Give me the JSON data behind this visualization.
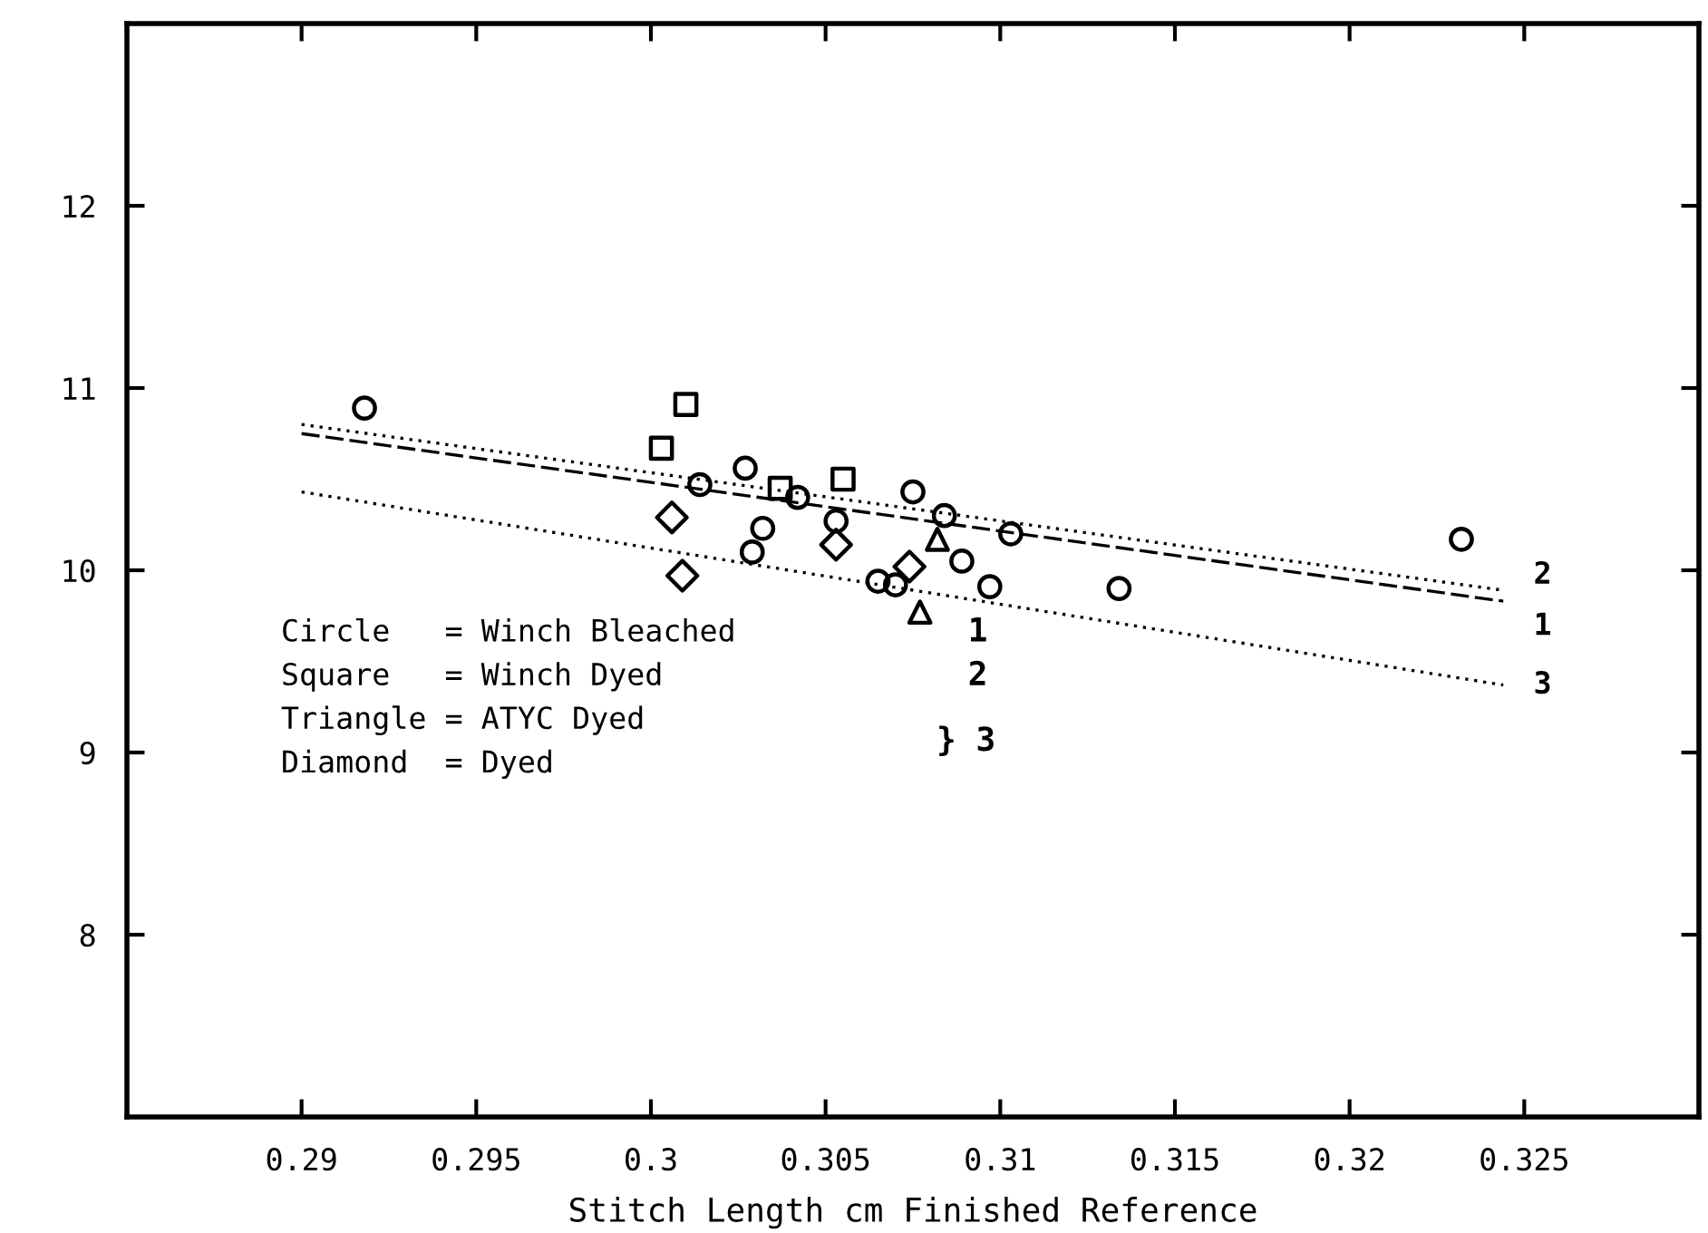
{
  "chart_data": {
    "type": "scatter",
    "xlabel": "Stitch Length cm Finished Reference",
    "xlim": [
      0.285,
      0.33
    ],
    "xticks": [
      0.29,
      0.295,
      0.3,
      0.305,
      0.31,
      0.315,
      0.32,
      0.325
    ],
    "ylim": [
      7,
      13
    ],
    "yticks": [
      8,
      9,
      10,
      11,
      12
    ],
    "grid": false,
    "legend": false,
    "series": [
      {
        "marker": "circle",
        "color": "#000000",
        "x": [
          0.2918,
          0.3014,
          0.3027,
          0.3032,
          0.3029,
          0.3042,
          0.3053,
          0.3065,
          0.307,
          0.3075,
          0.3084,
          0.3089,
          0.3103,
          0.3097,
          0.3134,
          0.3232
        ],
        "values": [
          10.89,
          10.47,
          10.56,
          10.23,
          10.1,
          10.4,
          10.27,
          9.94,
          9.92,
          10.43,
          10.3,
          10.05,
          10.2,
          9.91,
          9.9,
          10.17
        ]
      },
      {
        "marker": "square",
        "color": "#000000",
        "x": [
          0.301,
          0.3003,
          0.3037,
          0.3055
        ],
        "values": [
          10.91,
          10.67,
          10.45,
          10.5
        ]
      },
      {
        "marker": "triangle",
        "color": "#000000",
        "x": [
          0.3077,
          0.3082
        ],
        "values": [
          9.77,
          10.17
        ]
      },
      {
        "marker": "diamond",
        "color": "#000000",
        "x": [
          0.3006,
          0.3009,
          0.3053,
          0.3074
        ],
        "values": [
          10.29,
          9.97,
          10.14,
          10.02
        ]
      },
      {
        "type": "line",
        "name": "1",
        "line_style": "dashed",
        "color": "#000000",
        "x": [
          0.29,
          0.3244
        ],
        "values": [
          10.75,
          9.83
        ]
      },
      {
        "type": "line",
        "name": "2",
        "line_style": "dotted",
        "color": "#000000",
        "x": [
          0.29,
          0.3244
        ],
        "values": [
          10.8,
          9.89
        ]
      },
      {
        "type": "line",
        "name": "3",
        "line_style": "dotted",
        "color": "#000000",
        "x": [
          0.29,
          0.3244
        ],
        "values": [
          10.43,
          9.37
        ]
      }
    ],
    "annotations": [
      "Circle   = Winch Bleached",
      "Square   = Winch Dyed",
      "Triangle = ATYC Dyed",
      "Diamond  = Dyed",
      "1",
      "2",
      "} 3"
    ]
  }
}
